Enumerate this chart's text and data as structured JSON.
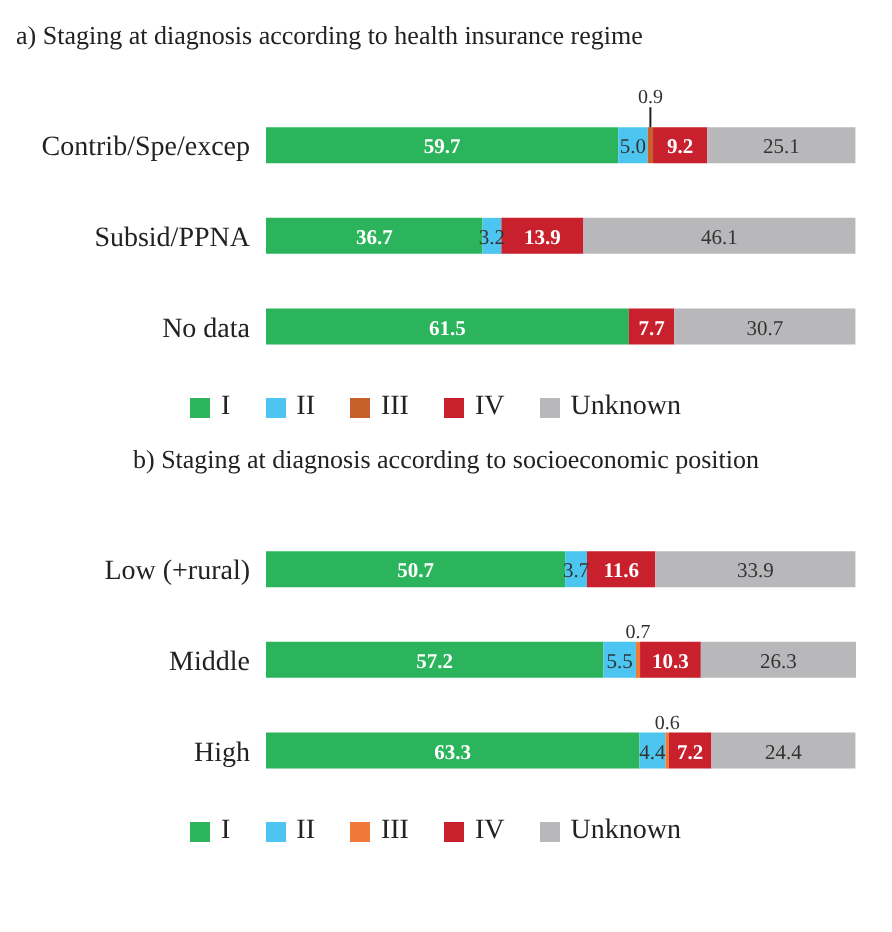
{
  "chart_data": [
    {
      "type": "bar",
      "orientation": "horizontal",
      "stacked": true,
      "title": "a) Staging at diagnosis according to health insurance regime",
      "categories": [
        "Contrib/Spe/excep",
        "Subsid/PPNA",
        "No data"
      ],
      "xlim": [
        0,
        100
      ],
      "tick_labels": "y",
      "legend": "bottom",
      "series": [
        {
          "name": "I",
          "color": "#2bb45c",
          "values": [
            59.7,
            36.7,
            61.5
          ],
          "value_labels": [
            "59.7",
            "36.7",
            "61.5"
          ]
        },
        {
          "name": "II",
          "color": "#4cc6f0",
          "values": [
            5.0,
            3.2,
            null
          ],
          "value_labels": [
            "5.0",
            "3.2",
            null
          ]
        },
        {
          "name": "III",
          "color": "#c8602a",
          "values": [
            0.9,
            null,
            null
          ],
          "value_labels": [
            "0.9",
            null,
            null
          ]
        },
        {
          "name": "IV",
          "color": "#c8202c",
          "values": [
            9.2,
            13.9,
            7.7
          ],
          "value_labels": [
            "9.2",
            "13.9",
            "7.7"
          ]
        },
        {
          "name": "Unknown",
          "color": "#b8b8bb",
          "values": [
            25.1,
            46.1,
            30.7
          ],
          "value_labels": [
            "25.1",
            "46.1",
            "30.7"
          ]
        }
      ]
    },
    {
      "type": "bar",
      "orientation": "horizontal",
      "stacked": true,
      "title": "b) Staging at diagnosis according to socioeconomic position",
      "categories": [
        "Low (+rural)",
        "Middle",
        "High"
      ],
      "xlim": [
        0,
        100
      ],
      "tick_labels": "y",
      "legend": "bottom",
      "series": [
        {
          "name": "I",
          "color": "#2bb45c",
          "values": [
            50.7,
            57.2,
            63.3
          ],
          "value_labels": [
            "50.7",
            "57.2",
            "63.3"
          ]
        },
        {
          "name": "II",
          "color": "#4cc6f0",
          "values": [
            3.7,
            5.5,
            4.4
          ],
          "value_labels": [
            "3.7",
            "5.5",
            "4.4"
          ]
        },
        {
          "name": "III",
          "color": "#f07838",
          "values": [
            null,
            0.7,
            0.6
          ],
          "value_labels": [
            null,
            "0.7",
            "0.6"
          ]
        },
        {
          "name": "IV",
          "color": "#c8202c",
          "values": [
            11.6,
            10.3,
            7.2
          ],
          "value_labels": [
            "11.6",
            "10.3",
            "7.2"
          ]
        },
        {
          "name": "Unknown",
          "color": "#b8b8bb",
          "values": [
            33.9,
            26.3,
            24.4
          ],
          "value_labels": [
            "33.9",
            "26.3",
            "24.4"
          ]
        }
      ]
    }
  ]
}
